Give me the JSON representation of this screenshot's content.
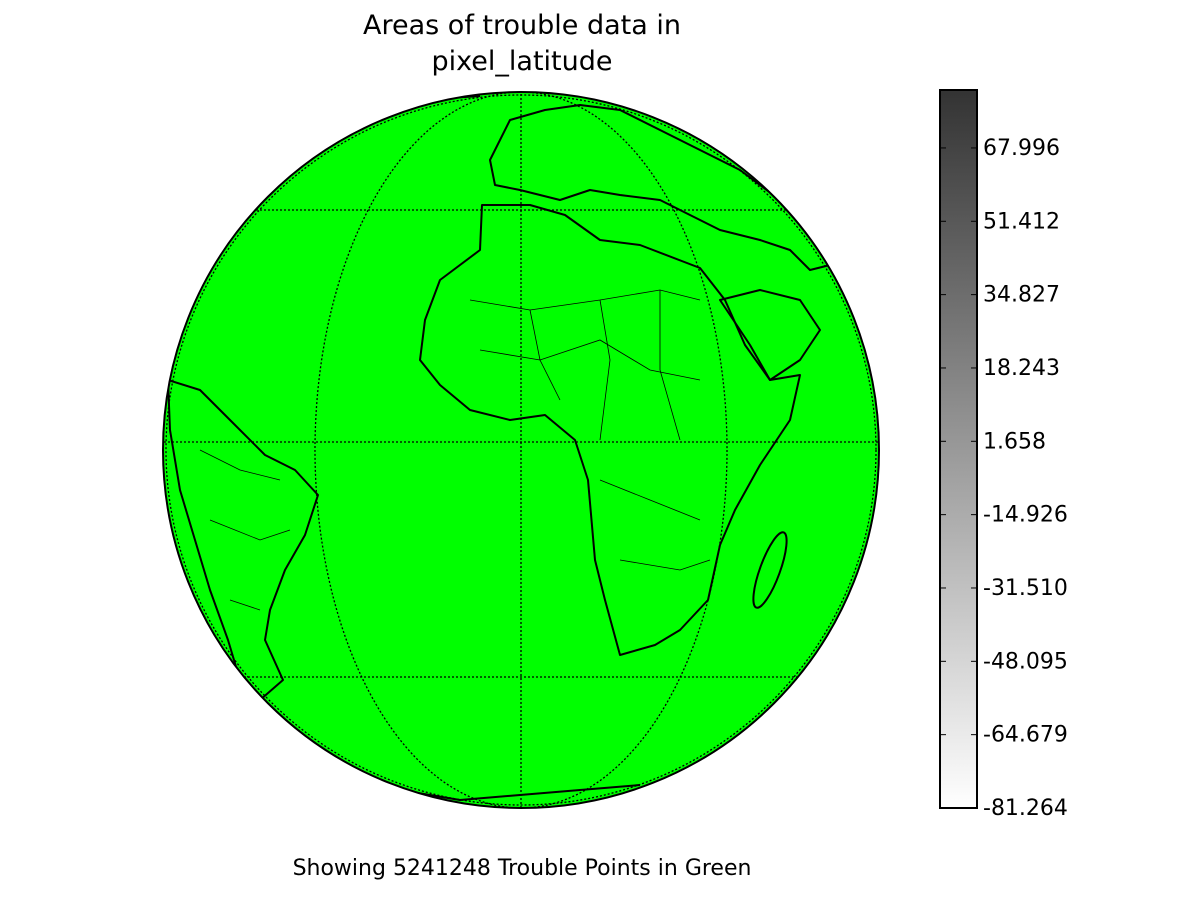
{
  "title": "Areas of trouble data in pixel_latitude",
  "caption": "Showing 5241248 Trouble Points in Green",
  "colorbar": {
    "lim": [
      -81.264,
      81.1
    ],
    "ticks": [
      67.996,
      51.412,
      34.827,
      18.243,
      1.658,
      -14.926,
      {
        "value": -31.51,
        "label": "-31.510"
      },
      -48.095,
      -64.679,
      -81.264
    ]
  }
}
